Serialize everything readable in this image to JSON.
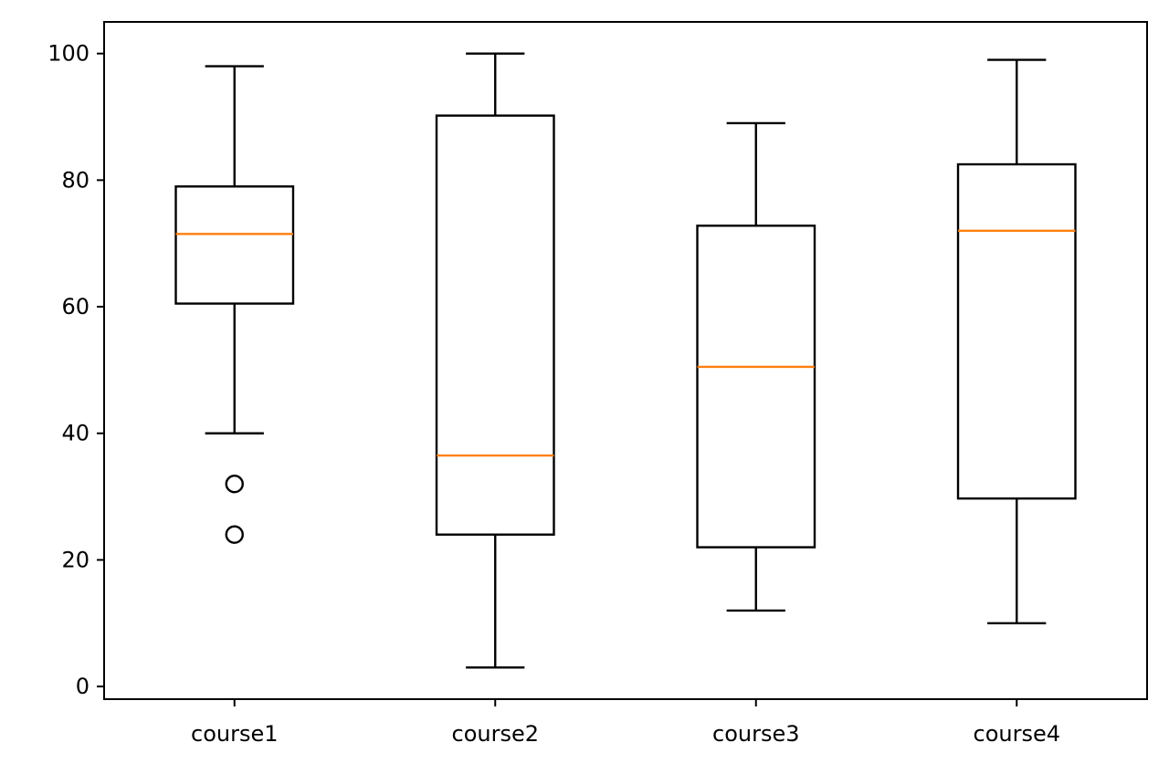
{
  "chart_data": {
    "type": "boxplot",
    "title": "",
    "xlabel": "",
    "ylabel": "",
    "ylim": [
      -2,
      105
    ],
    "yticks": [
      0,
      20,
      40,
      60,
      80,
      100
    ],
    "grid": false,
    "legend": "none",
    "colors": {
      "box": "#000000",
      "median": "#ff7f0e",
      "flier": "#000000"
    },
    "categories": [
      "course1",
      "course2",
      "course3",
      "course4"
    ],
    "series": [
      {
        "category": "course1",
        "whisker_low": 40,
        "q1": 60.5,
        "median": 71.5,
        "q3": 79,
        "whisker_high": 98,
        "fliers": [
          32,
          24
        ]
      },
      {
        "category": "course2",
        "whisker_low": 3,
        "q1": 24,
        "median": 36.5,
        "q3": 90.2,
        "whisker_high": 100,
        "fliers": []
      },
      {
        "category": "course3",
        "whisker_low": 12,
        "q1": 22,
        "median": 50.5,
        "q3": 72.8,
        "whisker_high": 89,
        "fliers": []
      },
      {
        "category": "course4",
        "whisker_low": 10,
        "q1": 29.7,
        "median": 72,
        "q3": 82.5,
        "whisker_high": 99,
        "fliers": []
      }
    ]
  }
}
